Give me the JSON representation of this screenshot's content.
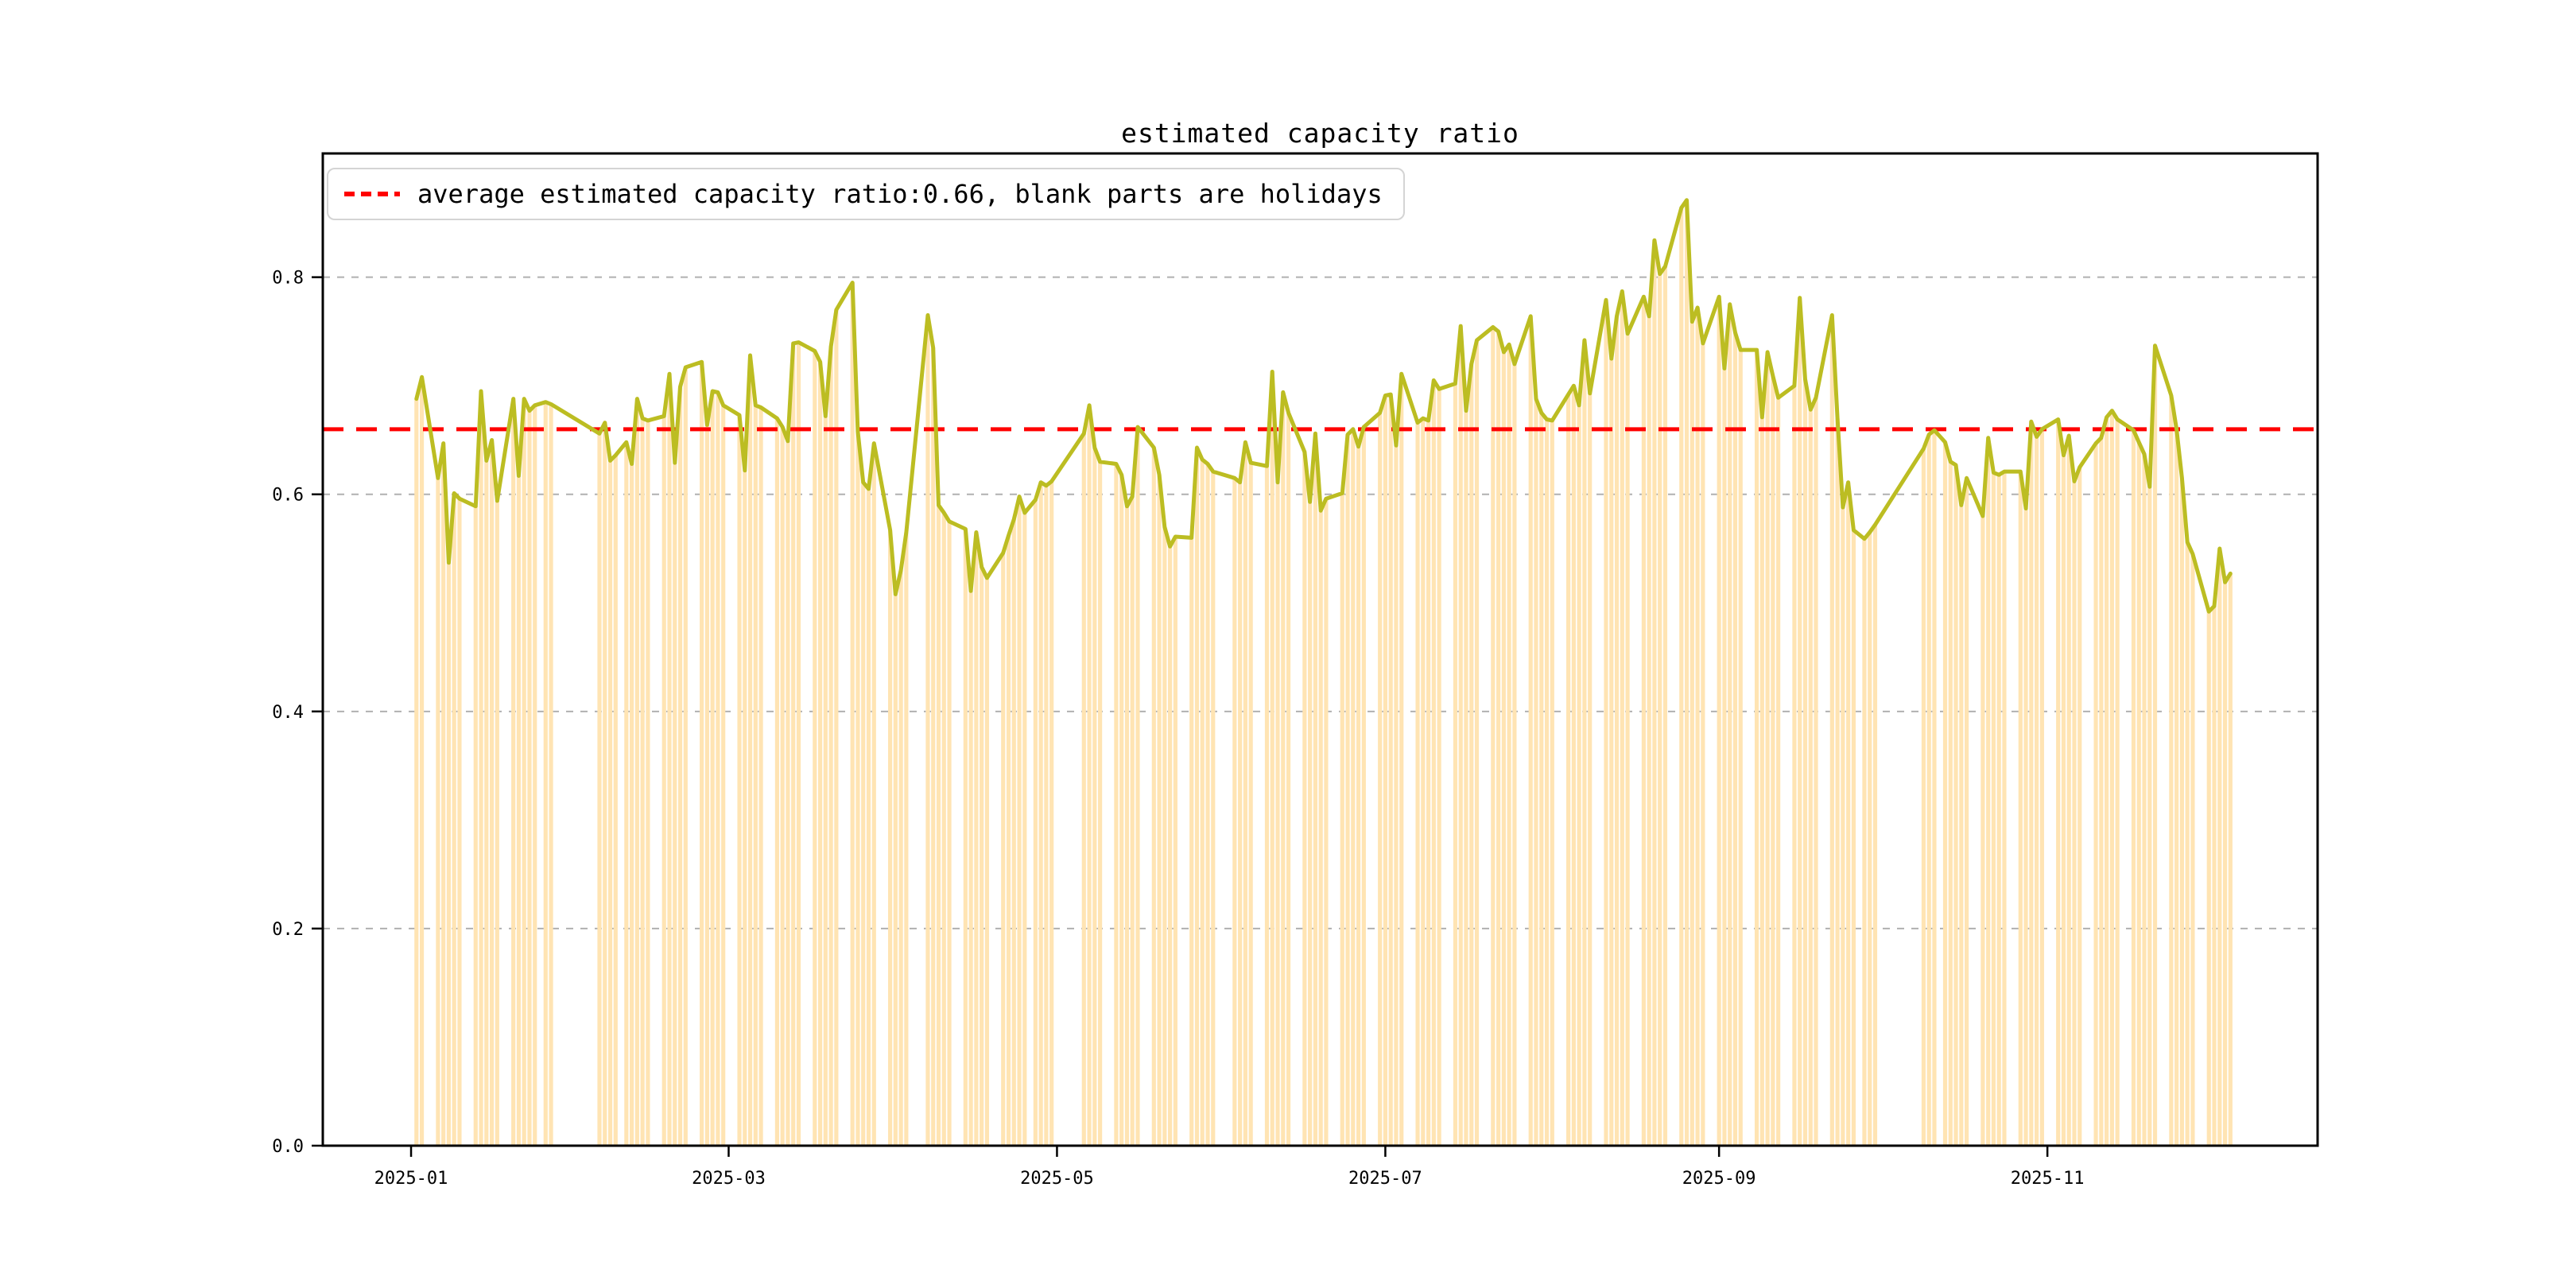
{
  "chart_data": {
    "type": "bar",
    "title": "estimated capacity ratio",
    "legend": {
      "label": "average estimated capacity ratio:0.66, blank parts are holidays",
      "position": "upper left",
      "sample_color": "#ff0000",
      "sample_style": "dashed"
    },
    "average": 0.66,
    "average_line_color": "#ff0000",
    "line_color": "#bcbd22",
    "bar_color": "#ffe4b3",
    "grid_color": "#b0b0b0",
    "frame_color": "#000000",
    "grid": "horizontal dashed, bars drawn over grid",
    "ylim": [
      0,
      0.914
    ],
    "xlim_days_from_2025_01_01": [
      -16.4,
      354.2
    ],
    "y_ticks": [
      {
        "v": 0.0,
        "label": "0.0"
      },
      {
        "v": 0.2,
        "label": "0.2"
      },
      {
        "v": 0.4,
        "label": "0.4"
      },
      {
        "v": 0.6,
        "label": "0.6"
      },
      {
        "v": 0.8,
        "label": "0.8"
      }
    ],
    "x_ticks": [
      {
        "d": 0,
        "label": "2025-01"
      },
      {
        "d": 59,
        "label": "2025-03"
      },
      {
        "d": 120,
        "label": "2025-05"
      },
      {
        "d": 181,
        "label": "2025-07"
      },
      {
        "d": 243,
        "label": "2025-09"
      },
      {
        "d": 304,
        "label": "2025-11"
      }
    ],
    "points": [
      [
        "2025-01-02",
        0.688
      ],
      [
        "2025-01-03",
        0.708
      ],
      [
        "2025-01-06",
        0.615
      ],
      [
        "2025-01-07",
        0.647
      ],
      [
        "2025-01-08",
        0.537
      ],
      [
        "2025-01-09",
        0.601
      ],
      [
        "2025-01-10",
        0.596
      ],
      [
        "2025-01-13",
        0.589
      ],
      [
        "2025-01-14",
        0.695
      ],
      [
        "2025-01-15",
        0.631
      ],
      [
        "2025-01-16",
        0.65
      ],
      [
        "2025-01-17",
        0.594
      ],
      [
        "2025-01-20",
        0.688
      ],
      [
        "2025-01-21",
        0.617
      ],
      [
        "2025-01-22",
        0.688
      ],
      [
        "2025-01-23",
        0.677
      ],
      [
        "2025-01-24",
        0.682
      ],
      [
        "2025-01-26",
        0.685
      ],
      [
        "2025-01-27",
        0.683
      ],
      [
        "2025-02-05",
        0.656
      ],
      [
        "2025-02-06",
        0.666
      ],
      [
        "2025-02-07",
        0.631
      ],
      [
        "2025-02-08",
        0.636
      ],
      [
        "2025-02-10",
        0.648
      ],
      [
        "2025-02-11",
        0.628
      ],
      [
        "2025-02-12",
        0.688
      ],
      [
        "2025-02-13",
        0.67
      ],
      [
        "2025-02-14",
        0.668
      ],
      [
        "2025-02-17",
        0.672
      ],
      [
        "2025-02-18",
        0.711
      ],
      [
        "2025-02-19",
        0.629
      ],
      [
        "2025-02-20",
        0.699
      ],
      [
        "2025-02-21",
        0.717
      ],
      [
        "2025-02-24",
        0.722
      ],
      [
        "2025-02-25",
        0.664
      ],
      [
        "2025-02-26",
        0.695
      ],
      [
        "2025-02-27",
        0.694
      ],
      [
        "2025-02-28",
        0.682
      ],
      [
        "2025-03-03",
        0.673
      ],
      [
        "2025-03-04",
        0.622
      ],
      [
        "2025-03-05",
        0.728
      ],
      [
        "2025-03-06",
        0.682
      ],
      [
        "2025-03-07",
        0.68
      ],
      [
        "2025-03-10",
        0.67
      ],
      [
        "2025-03-11",
        0.662
      ],
      [
        "2025-03-12",
        0.649
      ],
      [
        "2025-03-13",
        0.739
      ],
      [
        "2025-03-14",
        0.74
      ],
      [
        "2025-03-17",
        0.732
      ],
      [
        "2025-03-18",
        0.722
      ],
      [
        "2025-03-19",
        0.672
      ],
      [
        "2025-03-20",
        0.736
      ],
      [
        "2025-03-21",
        0.77
      ],
      [
        "2025-03-24",
        0.795
      ],
      [
        "2025-03-25",
        0.658
      ],
      [
        "2025-03-26",
        0.611
      ],
      [
        "2025-03-27",
        0.605
      ],
      [
        "2025-03-28",
        0.647
      ],
      [
        "2025-03-31",
        0.567
      ],
      [
        "2025-04-01",
        0.508
      ],
      [
        "2025-04-02",
        0.53
      ],
      [
        "2025-04-03",
        0.565
      ],
      [
        "2025-04-07",
        0.765
      ],
      [
        "2025-04-08",
        0.735
      ],
      [
        "2025-04-09",
        0.59
      ],
      [
        "2025-04-10",
        0.583
      ],
      [
        "2025-04-11",
        0.575
      ],
      [
        "2025-04-14",
        0.568
      ],
      [
        "2025-04-15",
        0.511
      ],
      [
        "2025-04-16",
        0.565
      ],
      [
        "2025-04-17",
        0.533
      ],
      [
        "2025-04-18",
        0.523
      ],
      [
        "2025-04-21",
        0.546
      ],
      [
        "2025-04-22",
        0.562
      ],
      [
        "2025-04-23",
        0.577
      ],
      [
        "2025-04-24",
        0.598
      ],
      [
        "2025-04-25",
        0.583
      ],
      [
        "2025-04-27",
        0.595
      ],
      [
        "2025-04-28",
        0.611
      ],
      [
        "2025-04-29",
        0.608
      ],
      [
        "2025-04-30",
        0.612
      ],
      [
        "2025-05-06",
        0.656
      ],
      [
        "2025-05-07",
        0.682
      ],
      [
        "2025-05-08",
        0.643
      ],
      [
        "2025-05-09",
        0.63
      ],
      [
        "2025-05-12",
        0.628
      ],
      [
        "2025-05-13",
        0.618
      ],
      [
        "2025-05-14",
        0.589
      ],
      [
        "2025-05-15",
        0.598
      ],
      [
        "2025-05-16",
        0.662
      ],
      [
        "2025-05-19",
        0.643
      ],
      [
        "2025-05-20",
        0.618
      ],
      [
        "2025-05-21",
        0.57
      ],
      [
        "2025-05-22",
        0.552
      ],
      [
        "2025-05-23",
        0.561
      ],
      [
        "2025-05-26",
        0.56
      ],
      [
        "2025-05-27",
        0.643
      ],
      [
        "2025-05-28",
        0.632
      ],
      [
        "2025-05-29",
        0.628
      ],
      [
        "2025-05-30",
        0.621
      ],
      [
        "2025-06-03",
        0.615
      ],
      [
        "2025-06-04",
        0.611
      ],
      [
        "2025-06-05",
        0.648
      ],
      [
        "2025-06-06",
        0.629
      ],
      [
        "2025-06-09",
        0.626
      ],
      [
        "2025-06-10",
        0.713
      ],
      [
        "2025-06-11",
        0.611
      ],
      [
        "2025-06-12",
        0.694
      ],
      [
        "2025-06-13",
        0.675
      ],
      [
        "2025-06-16",
        0.639
      ],
      [
        "2025-06-17",
        0.593
      ],
      [
        "2025-06-18",
        0.656
      ],
      [
        "2025-06-19",
        0.585
      ],
      [
        "2025-06-20",
        0.596
      ],
      [
        "2025-06-23",
        0.601
      ],
      [
        "2025-06-24",
        0.655
      ],
      [
        "2025-06-25",
        0.66
      ],
      [
        "2025-06-26",
        0.644
      ],
      [
        "2025-06-27",
        0.662
      ],
      [
        "2025-06-30",
        0.675
      ],
      [
        "2025-07-01",
        0.691
      ],
      [
        "2025-07-02",
        0.692
      ],
      [
        "2025-07-03",
        0.645
      ],
      [
        "2025-07-04",
        0.711
      ],
      [
        "2025-07-07",
        0.666
      ],
      [
        "2025-07-08",
        0.67
      ],
      [
        "2025-07-09",
        0.668
      ],
      [
        "2025-07-10",
        0.705
      ],
      [
        "2025-07-11",
        0.697
      ],
      [
        "2025-07-14",
        0.702
      ],
      [
        "2025-07-15",
        0.755
      ],
      [
        "2025-07-16",
        0.677
      ],
      [
        "2025-07-17",
        0.72
      ],
      [
        "2025-07-18",
        0.742
      ],
      [
        "2025-07-21",
        0.754
      ],
      [
        "2025-07-22",
        0.75
      ],
      [
        "2025-07-23",
        0.731
      ],
      [
        "2025-07-24",
        0.738
      ],
      [
        "2025-07-25",
        0.72
      ],
      [
        "2025-07-28",
        0.764
      ],
      [
        "2025-07-29",
        0.688
      ],
      [
        "2025-07-30",
        0.675
      ],
      [
        "2025-07-31",
        0.669
      ],
      [
        "2025-08-01",
        0.668
      ],
      [
        "2025-08-04",
        0.692
      ],
      [
        "2025-08-05",
        0.7
      ],
      [
        "2025-08-06",
        0.682
      ],
      [
        "2025-08-07",
        0.742
      ],
      [
        "2025-08-08",
        0.693
      ],
      [
        "2025-08-11",
        0.779
      ],
      [
        "2025-08-12",
        0.725
      ],
      [
        "2025-08-13",
        0.764
      ],
      [
        "2025-08-14",
        0.787
      ],
      [
        "2025-08-15",
        0.748
      ],
      [
        "2025-08-18",
        0.782
      ],
      [
        "2025-08-19",
        0.764
      ],
      [
        "2025-08-20",
        0.834
      ],
      [
        "2025-08-21",
        0.803
      ],
      [
        "2025-08-22",
        0.81
      ],
      [
        "2025-08-25",
        0.864
      ],
      [
        "2025-08-26",
        0.871
      ],
      [
        "2025-08-27",
        0.759
      ],
      [
        "2025-08-28",
        0.772
      ],
      [
        "2025-08-29",
        0.739
      ],
      [
        "2025-09-01",
        0.782
      ],
      [
        "2025-09-02",
        0.716
      ],
      [
        "2025-09-03",
        0.775
      ],
      [
        "2025-09-04",
        0.749
      ],
      [
        "2025-09-05",
        0.733
      ],
      [
        "2025-09-08",
        0.733
      ],
      [
        "2025-09-09",
        0.671
      ],
      [
        "2025-09-10",
        0.731
      ],
      [
        "2025-09-11",
        0.709
      ],
      [
        "2025-09-12",
        0.689
      ],
      [
        "2025-09-15",
        0.7
      ],
      [
        "2025-09-16",
        0.781
      ],
      [
        "2025-09-17",
        0.706
      ],
      [
        "2025-09-18",
        0.678
      ],
      [
        "2025-09-19",
        0.689
      ],
      [
        "2025-09-22",
        0.765
      ],
      [
        "2025-09-23",
        0.67
      ],
      [
        "2025-09-24",
        0.588
      ],
      [
        "2025-09-25",
        0.611
      ],
      [
        "2025-09-26",
        0.567
      ],
      [
        "2025-09-28",
        0.559
      ],
      [
        "2025-09-29",
        0.565
      ],
      [
        "2025-09-30",
        0.572
      ],
      [
        "2025-10-09",
        0.642
      ],
      [
        "2025-10-10",
        0.655
      ],
      [
        "2025-10-11",
        0.659
      ],
      [
        "2025-10-13",
        0.648
      ],
      [
        "2025-10-14",
        0.63
      ],
      [
        "2025-10-15",
        0.627
      ],
      [
        "2025-10-16",
        0.59
      ],
      [
        "2025-10-17",
        0.615
      ],
      [
        "2025-10-20",
        0.58
      ],
      [
        "2025-10-21",
        0.652
      ],
      [
        "2025-10-22",
        0.62
      ],
      [
        "2025-10-23",
        0.618
      ],
      [
        "2025-10-24",
        0.621
      ],
      [
        "2025-10-27",
        0.621
      ],
      [
        "2025-10-28",
        0.587
      ],
      [
        "2025-10-29",
        0.667
      ],
      [
        "2025-10-30",
        0.653
      ],
      [
        "2025-10-31",
        0.66
      ],
      [
        "2025-11-03",
        0.669
      ],
      [
        "2025-11-04",
        0.636
      ],
      [
        "2025-11-05",
        0.654
      ],
      [
        "2025-11-06",
        0.612
      ],
      [
        "2025-11-07",
        0.625
      ],
      [
        "2025-11-10",
        0.647
      ],
      [
        "2025-11-11",
        0.652
      ],
      [
        "2025-11-12",
        0.671
      ],
      [
        "2025-11-13",
        0.677
      ],
      [
        "2025-11-14",
        0.669
      ],
      [
        "2025-11-17",
        0.659
      ],
      [
        "2025-11-18",
        0.648
      ],
      [
        "2025-11-19",
        0.637
      ],
      [
        "2025-11-20",
        0.607
      ],
      [
        "2025-11-21",
        0.737
      ],
      [
        "2025-11-24",
        0.691
      ],
      [
        "2025-11-25",
        0.66
      ],
      [
        "2025-11-26",
        0.615
      ],
      [
        "2025-11-27",
        0.556
      ],
      [
        "2025-11-28",
        0.545
      ],
      [
        "2025-12-01",
        0.492
      ],
      [
        "2025-12-02",
        0.497
      ],
      [
        "2025-12-03",
        0.55
      ],
      [
        "2025-12-04",
        0.519
      ],
      [
        "2025-12-05",
        0.527
      ]
    ]
  }
}
